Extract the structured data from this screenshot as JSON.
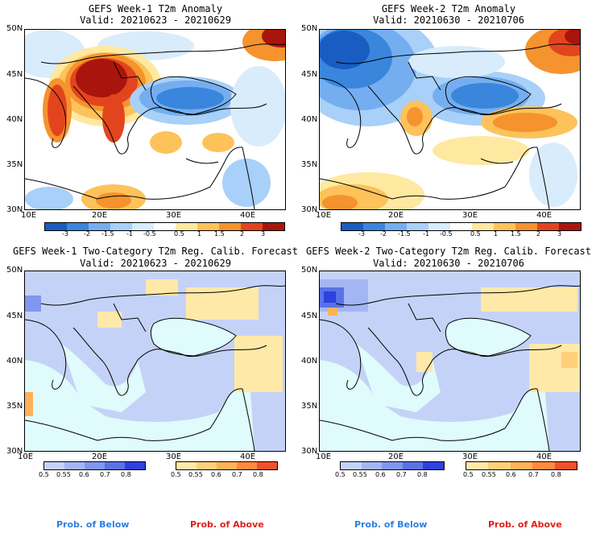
{
  "panels": [
    {
      "title": "GEFS Week-1 T2m Anomaly",
      "valid": "Valid: 20210623 - 20210629"
    },
    {
      "title": "GEFS Week-2 T2m Anomaly",
      "valid": "Valid: 20210630 - 20210706"
    },
    {
      "title": "GEFS Week-1 Two-Category T2m Reg. Calib. Forecast",
      "valid": "Valid: 20210623 - 20210629"
    },
    {
      "title": "GEFS Week-2 Two-Category T2m Reg. Calib. Forecast",
      "valid": "Valid: 20210630 - 20210706"
    }
  ],
  "lat_labels": [
    "50N",
    "45N",
    "40N",
    "35N",
    "30N"
  ],
  "lon_labels": [
    "10E",
    "20E",
    "30E",
    "40E"
  ],
  "anomaly_scale": {
    "labels": [
      "-3",
      "-2",
      "-1.5",
      "-1",
      "-0.5",
      "0.5",
      "1",
      "1.5",
      "2",
      "3"
    ],
    "colors": [
      "#1a5dc2",
      "#3a86dd",
      "#75aef0",
      "#a8d0f8",
      "#d8ecfc",
      "#ffffff",
      "#ffe9a0",
      "#fdc25a",
      "#f5932e",
      "#e2451e",
      "#a8150c"
    ]
  },
  "prob_scale": {
    "below_labels": [
      "0.5",
      "0.55",
      "0.6",
      "0.7",
      "0.8"
    ],
    "above_labels": [
      "0.5",
      "0.55",
      "0.6",
      "0.7",
      "0.8"
    ],
    "below_colors": [
      "#c5d2f8",
      "#a3b6f3",
      "#7f97ee",
      "#5a72e6",
      "#2e41dc"
    ],
    "above_colors": [
      "#ffe9a8",
      "#ffd07a",
      "#ffb25a",
      "#ff8a3e",
      "#f2502a"
    ],
    "below_label": "Prob. of Below",
    "above_label": "Prob. of Above",
    "below_text_color": "#2f7fe0",
    "above_text_color": "#e0201a"
  }
}
